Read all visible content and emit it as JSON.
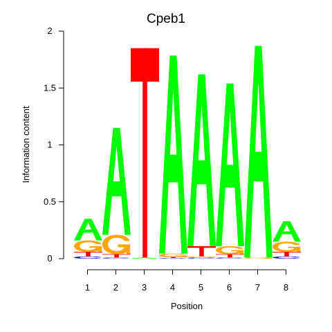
{
  "chart_data": {
    "type": "sequence-logo",
    "title": "Cpeb1",
    "xlabel": "Position",
    "ylabel": "Information content",
    "ylim": [
      0,
      2
    ],
    "y_ticks": [
      "0",
      "0.5",
      "1",
      "1.5",
      "2"
    ],
    "x_ticks": [
      "1",
      "2",
      "3",
      "4",
      "5",
      "6",
      "7",
      "8"
    ],
    "grid": false,
    "colors": {
      "A": "#00ff00",
      "C": "#0000ff",
      "G": "#ffa500",
      "T": "#ff0000"
    },
    "positions": [
      {
        "pos": "1",
        "letters": [
          {
            "base": "C",
            "height": 0.02
          },
          {
            "base": "T",
            "height": 0.04
          },
          {
            "base": "G",
            "height": 0.1
          },
          {
            "base": "A",
            "height": 0.19
          }
        ]
      },
      {
        "pos": "2",
        "letters": [
          {
            "base": "C",
            "height": 0.01
          },
          {
            "base": "T",
            "height": 0.03
          },
          {
            "base": "G",
            "height": 0.17
          },
          {
            "base": "A",
            "height": 0.94
          }
        ]
      },
      {
        "pos": "3",
        "letters": [
          {
            "base": "A",
            "height": 0.01
          },
          {
            "base": "T",
            "height": 1.84
          }
        ]
      },
      {
        "pos": "4",
        "letters": [
          {
            "base": "C",
            "height": 0.005
          },
          {
            "base": "T",
            "height": 0.01
          },
          {
            "base": "G",
            "height": 0.03
          },
          {
            "base": "A",
            "height": 1.74
          }
        ]
      },
      {
        "pos": "5",
        "letters": [
          {
            "base": "C",
            "height": 0.01
          },
          {
            "base": "G",
            "height": 0.01
          },
          {
            "base": "T",
            "height": 0.09
          },
          {
            "base": "A",
            "height": 1.51
          }
        ]
      },
      {
        "pos": "6",
        "letters": [
          {
            "base": "C",
            "height": 0.01
          },
          {
            "base": "T",
            "height": 0.03
          },
          {
            "base": "G",
            "height": 0.07
          },
          {
            "base": "A",
            "height": 1.43
          }
        ]
      },
      {
        "pos": "7",
        "letters": [
          {
            "base": "G",
            "height": 0.01
          },
          {
            "base": "A",
            "height": 1.86
          }
        ]
      },
      {
        "pos": "8",
        "letters": [
          {
            "base": "C",
            "height": 0.02
          },
          {
            "base": "T",
            "height": 0.04
          },
          {
            "base": "G",
            "height": 0.09
          },
          {
            "base": "A",
            "height": 0.18
          }
        ]
      }
    ]
  }
}
